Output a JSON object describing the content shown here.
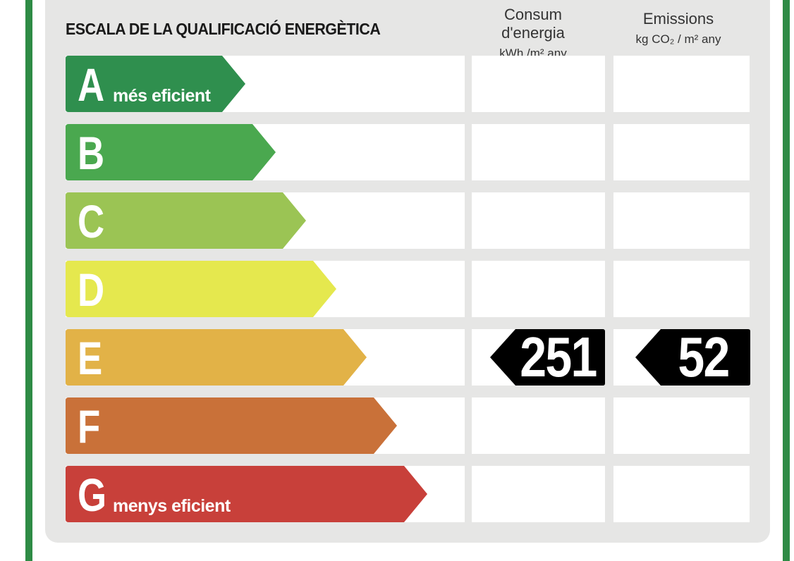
{
  "title": "ESCALA DE LA QUALIFICACIÓ ENERGÈTICA",
  "columns": {
    "energy": {
      "label": "Consum d'energia",
      "unit": "kWh /m² any"
    },
    "emissions": {
      "label": "Emissions",
      "unit": "kg CO₂ / m² any"
    }
  },
  "ratings": [
    {
      "letter": "A",
      "sublabel": "més eficient",
      "color": "#2f8f4e"
    },
    {
      "letter": "B",
      "sublabel": "",
      "color": "#4aa84f"
    },
    {
      "letter": "C",
      "sublabel": "",
      "color": "#9bc454"
    },
    {
      "letter": "D",
      "sublabel": "",
      "color": "#e5e84e"
    },
    {
      "letter": "E",
      "sublabel": "",
      "color": "#e2b247"
    },
    {
      "letter": "F",
      "sublabel": "",
      "color": "#c97139"
    },
    {
      "letter": "G",
      "sublabel": "menys eficient",
      "color": "#c8403a"
    }
  ],
  "result": {
    "rating": "E",
    "energy_value": "251",
    "emissions_value": "52",
    "marker_color": "#000000"
  }
}
